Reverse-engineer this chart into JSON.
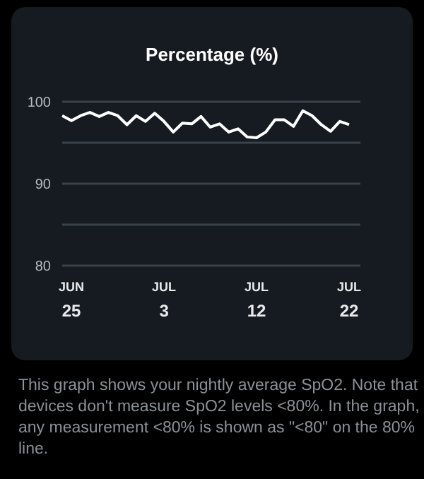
{
  "chart_data": {
    "type": "line",
    "title": "Percentage (%)",
    "categories": [
      null,
      "JUN 25",
      null,
      null,
      null,
      null,
      null,
      null,
      null,
      null,
      null,
      "JUL 3",
      null,
      null,
      null,
      null,
      null,
      null,
      null,
      null,
      null,
      "JUL 12",
      null,
      null,
      null,
      null,
      null,
      null,
      null,
      null,
      null,
      "JUL 22"
    ],
    "series": [
      {
        "color": "#ffffff",
        "values": [
          98.3,
          97.7,
          98.3,
          98.7,
          98.2,
          98.7,
          98.3,
          97.2,
          98.3,
          97.6,
          98.6,
          97.6,
          96.3,
          97.4,
          97.3,
          98.2,
          96.9,
          97.3,
          96.3,
          96.7,
          95.7,
          95.6,
          96.3,
          97.8,
          97.8,
          97.0,
          98.9,
          98.3,
          97.2,
          96.4,
          97.6,
          97.2
        ]
      }
    ],
    "ylim": [
      80,
      100
    ],
    "yticks": [
      80,
      {
        "value": 85,
        "label": null
      },
      90,
      {
        "value": 95,
        "label": null
      },
      100
    ],
    "grid": "y",
    "annotations": [
      "This graph shows your nightly average SpO2. Note that devices don't measure SpO2 levels <80%. In the graph, any measurement <80% is shown as \"<80\" on the 80% line."
    ]
  }
}
